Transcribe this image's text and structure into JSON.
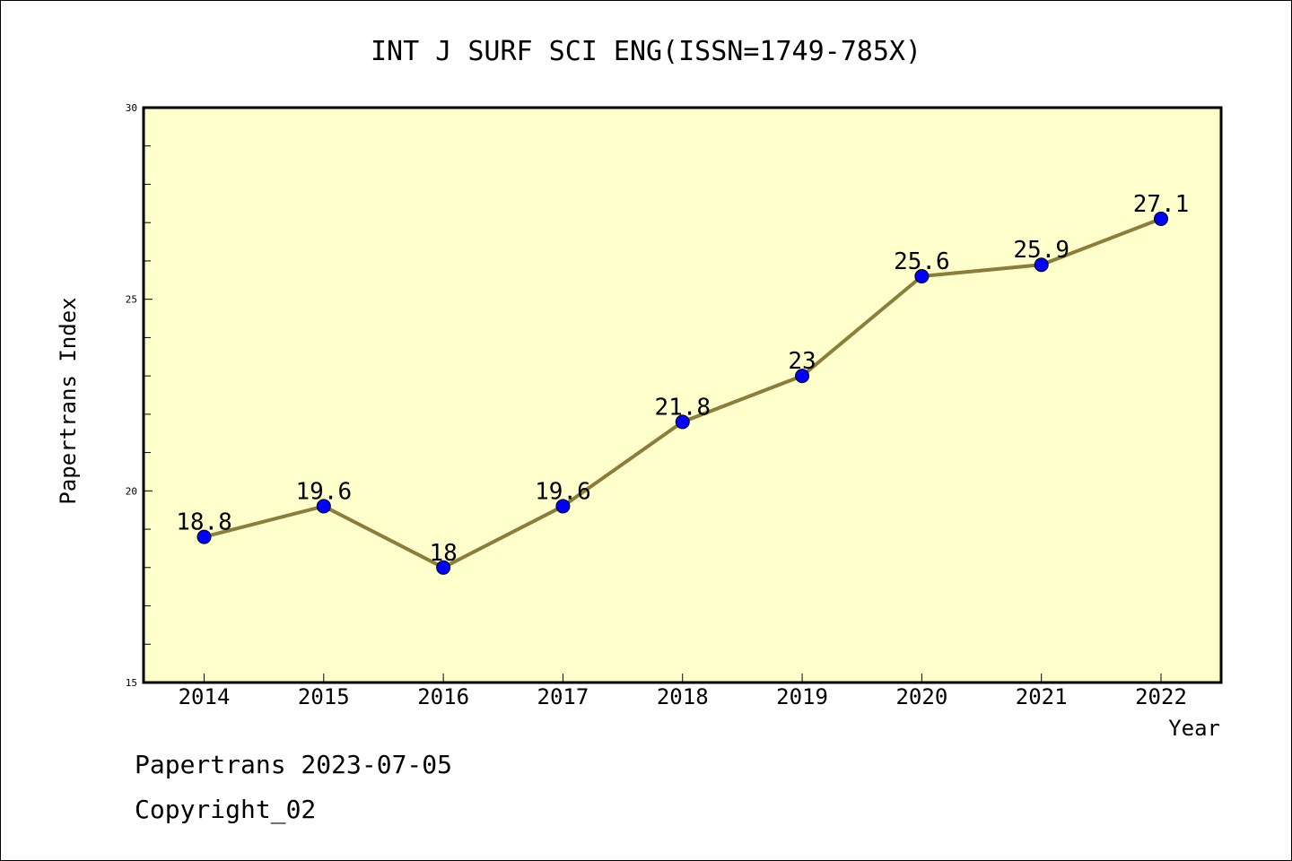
{
  "chart_data": {
    "type": "line",
    "title": "INT J SURF SCI ENG(ISSN=1749-785X)",
    "xlabel": "Year",
    "ylabel": "Papertrans Index",
    "categories": [
      "2014",
      "2015",
      "2016",
      "2017",
      "2018",
      "2019",
      "2020",
      "2021",
      "2022"
    ],
    "series": [
      {
        "values": [
          18.8,
          19.6,
          18,
          19.6,
          21.8,
          23,
          25.6,
          25.9,
          27.1
        ],
        "labels": [
          "18.8",
          "19.6",
          "18",
          "19.6",
          "21.8",
          "23",
          "25.6",
          "25.9",
          "27.1"
        ]
      }
    ],
    "ylim": [
      15,
      30
    ],
    "yticks": [
      "15",
      "20",
      "25",
      "30"
    ],
    "y_minor_step": 1,
    "grid": false,
    "legend": "none",
    "colors": {
      "plot_background": "#ffffcc",
      "line": "#8b7d3a",
      "marker": "#0000ff"
    }
  },
  "footer": {
    "line1": "Papertrans 2023-07-05",
    "line2": "Copyright_02"
  }
}
